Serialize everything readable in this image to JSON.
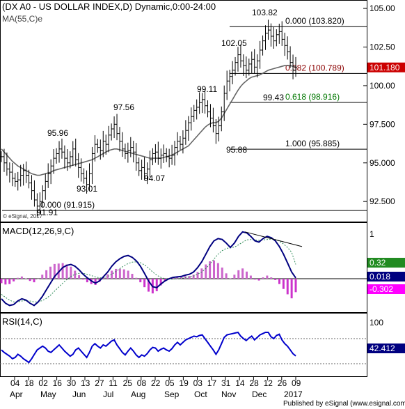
{
  "header": {
    "title": "(DX A0 - US DOLLAR INDEX,D) Dynamic,0:00-24:00",
    "ma_label": "MA(55,C)e",
    "watermark": "© eSignal, 2017",
    "footer": "Published by eSignal (www.esignal.com)"
  },
  "colors": {
    "price": "#000000",
    "ma": "#666666",
    "macd": "#000080",
    "signal": "#2e8b57",
    "hist_pos": "#cc66cc",
    "hist_neg": "#cc33cc",
    "rsi": "#0000cc",
    "fib_red": "#8b0000",
    "fib_green": "#007700",
    "last_price_bg": "#cc0000",
    "macd_bg": "#000080",
    "signal_bg": "#228b22",
    "hist_bg": "#ff00ff",
    "rsi_bg": "#000080"
  },
  "chart_data": [
    {
      "type": "candlestick",
      "panel": "price",
      "title": "(DX A0 - US DOLLAR INDEX,D) Dynamic,0:00-24:00",
      "ylim": [
        91.2,
        105.5
      ],
      "y_ticks": [
        "105.00",
        "102.50",
        "100.00",
        "97.500",
        "95.000",
        "92.500"
      ],
      "y_tick_values": [
        105.0,
        102.5,
        100.0,
        97.5,
        95.0,
        92.5
      ],
      "last_price": "101.180",
      "close_series": [
        95.4,
        95.0,
        94.6,
        94.4,
        94.0,
        93.8,
        93.9,
        94.2,
        94.5,
        94.2,
        93.7,
        93.2,
        92.6,
        92.2,
        92.5,
        93.2,
        93.8,
        94.3,
        94.8,
        95.3,
        95.6,
        95.9,
        95.7,
        95.3,
        95.0,
        95.4,
        95.9,
        95.2,
        94.7,
        94.3,
        94.0,
        93.6,
        94.3,
        95.6,
        96.2,
        96.0,
        95.8,
        96.4,
        96.2,
        96.8,
        97.2,
        97.5,
        96.9,
        96.4,
        95.9,
        95.6,
        95.8,
        96.0,
        95.7,
        95.0,
        94.5,
        94.7,
        94.3,
        94.6,
        95.2,
        95.6,
        95.7,
        95.3,
        95.5,
        95.6,
        95.4,
        95.3,
        95.5,
        96.0,
        96.4,
        96.2,
        96.6,
        97.1,
        97.6,
        98.0,
        98.4,
        98.6,
        98.9,
        99.1,
        98.7,
        98.3,
        97.9,
        97.4,
        96.9,
        97.4,
        98.3,
        99.5,
        100.3,
        100.6,
        101.0,
        101.5,
        102.0,
        101.6,
        101.3,
        101.0,
        101.4,
        101.7,
        101.2,
        101.6,
        102.3,
        102.9,
        103.4,
        103.6,
        103.2,
        102.9,
        103.3,
        103.5,
        103.0,
        102.6,
        102.2,
        101.5,
        101.0,
        101.18
      ],
      "ma55_series": [
        95.9,
        95.7,
        95.5,
        95.3,
        95.1,
        94.95,
        94.8,
        94.7,
        94.6,
        94.5,
        94.4,
        94.3,
        94.25,
        94.2,
        94.2,
        94.25,
        94.3,
        94.35,
        94.4,
        94.5,
        94.55,
        94.6,
        94.65,
        94.7,
        94.75,
        94.8,
        94.85,
        94.9,
        94.95,
        95.0,
        95.05,
        95.1,
        95.15,
        95.2,
        95.3,
        95.4,
        95.5,
        95.6,
        95.7,
        95.8,
        95.85,
        95.9,
        95.9,
        95.85,
        95.8,
        95.75,
        95.7,
        95.65,
        95.6,
        95.55,
        95.5,
        95.45,
        95.4,
        95.35,
        95.3,
        95.3,
        95.3,
        95.3,
        95.3,
        95.35,
        95.4,
        95.45,
        95.5,
        95.6,
        95.7,
        95.8,
        95.9,
        96.0,
        96.1,
        96.3,
        96.5,
        96.7,
        96.9,
        97.1,
        97.3,
        97.45,
        97.55,
        97.6,
        97.6,
        97.7,
        97.9,
        98.2,
        98.5,
        98.8,
        99.1,
        99.4,
        99.7,
        99.95,
        100.15,
        100.3,
        100.45,
        100.55,
        100.6,
        100.65,
        100.7,
        100.8,
        100.9,
        101.0,
        101.05,
        101.1,
        101.15,
        101.2,
        101.25,
        101.3,
        101.3,
        101.3,
        101.25,
        101.2
      ],
      "annotations": [
        {
          "text": "95.96",
          "price": 95.96
        },
        {
          "text": "93.01",
          "price": 93.01
        },
        {
          "text": "97.56",
          "price": 97.56
        },
        {
          "text": "94.07",
          "price": 94.07
        },
        {
          "text": "99.11",
          "price": 99.11
        },
        {
          "text": "102.05",
          "price": 102.05
        },
        {
          "text": "103.82",
          "price": 103.82
        },
        {
          "text": "99.43",
          "price": 99.43
        },
        {
          "text": "95.88",
          "price": 95.88
        },
        {
          "text": "91.91",
          "price": 91.91
        }
      ],
      "fib_levels": [
        {
          "label": "0.000 (103.820)",
          "price": 103.82,
          "color": "#000000"
        },
        {
          "label": "0.382 (100.789)",
          "price": 100.789,
          "color": "#8b0000"
        },
        {
          "label": "0.618 (98.916)",
          "price": 98.916,
          "color": "#007700"
        },
        {
          "label": "1.000 (95.885)",
          "price": 95.885,
          "color": "#000000"
        },
        {
          "label": "0.000 (91.915)",
          "price": 91.915,
          "color": "#000000"
        }
      ]
    },
    {
      "type": "line",
      "panel": "macd",
      "title": "MACD(12,26,9,C)",
      "ylim": [
        -0.75,
        1.25
      ],
      "y_ticks": [
        "1"
      ],
      "y_tick_values": [
        1.0
      ],
      "macd_value": "0.018",
      "signal_value": "0.32",
      "hist_value": "-0.302",
      "macd_series": [
        -0.45,
        -0.55,
        -0.6,
        -0.58,
        -0.5,
        -0.45,
        -0.48,
        -0.55,
        -0.6,
        -0.52,
        -0.4,
        -0.25,
        -0.1,
        0.05,
        0.15,
        0.25,
        0.3,
        0.32,
        0.28,
        0.2,
        0.1,
        0.02,
        -0.05,
        -0.1,
        -0.05,
        0.05,
        0.15,
        0.28,
        0.38,
        0.45,
        0.5,
        0.52,
        0.48,
        0.4,
        0.28,
        0.12,
        -0.05,
        -0.18,
        -0.2,
        -0.12,
        -0.05,
        0.0,
        0.03,
        0.04,
        0.05,
        0.08,
        0.1,
        0.15,
        0.25,
        0.38,
        0.55,
        0.72,
        0.85,
        0.9,
        0.88,
        0.8,
        0.7,
        0.8,
        0.95,
        1.05,
        1.03,
        0.95,
        0.85,
        0.82,
        0.9,
        0.95,
        0.92,
        0.85,
        0.72,
        0.55,
        0.35,
        0.15,
        0.018
      ],
      "signal_series": [
        -0.35,
        -0.42,
        -0.48,
        -0.52,
        -0.52,
        -0.5,
        -0.49,
        -0.5,
        -0.52,
        -0.52,
        -0.49,
        -0.44,
        -0.37,
        -0.28,
        -0.19,
        -0.1,
        -0.02,
        0.05,
        0.1,
        0.12,
        0.12,
        0.1,
        0.07,
        0.04,
        0.02,
        0.02,
        0.05,
        0.1,
        0.16,
        0.23,
        0.29,
        0.34,
        0.37,
        0.38,
        0.36,
        0.31,
        0.24,
        0.15,
        0.08,
        0.03,
        0.0,
        -0.01,
        -0.01,
        0.0,
        0.01,
        0.02,
        0.04,
        0.06,
        0.1,
        0.15,
        0.23,
        0.33,
        0.44,
        0.55,
        0.63,
        0.68,
        0.69,
        0.71,
        0.76,
        0.82,
        0.87,
        0.88,
        0.87,
        0.86,
        0.87,
        0.88,
        0.89,
        0.88,
        0.84,
        0.78,
        0.7,
        0.59,
        0.32
      ],
      "trendline": {
        "from": 1.05,
        "to": 0.72
      }
    },
    {
      "type": "line",
      "panel": "rsi",
      "title": "RSI(14,C)",
      "ylim": [
        10,
        110
      ],
      "y_ticks": [
        "100"
      ],
      "y_tick_values": [
        100
      ],
      "overbought": 70,
      "oversold": 30,
      "rsi_value": "42.412",
      "rsi_series": [
        52,
        48,
        45,
        42,
        38,
        40,
        45,
        42,
        38,
        35,
        32,
        38,
        45,
        52,
        55,
        58,
        55,
        50,
        48,
        52,
        56,
        60,
        55,
        50,
        46,
        42,
        45,
        52,
        55,
        50,
        45,
        40,
        48,
        58,
        62,
        58,
        55,
        60,
        58,
        62,
        66,
        68,
        60,
        54,
        48,
        44,
        50,
        55,
        50,
        44,
        40,
        44,
        42,
        46,
        52,
        56,
        55,
        50,
        53,
        55,
        52,
        50,
        54,
        60,
        64,
        60,
        64,
        68,
        70,
        72,
        74,
        73,
        75,
        76,
        70,
        64,
        58,
        52,
        45,
        52,
        62,
        72,
        76,
        77,
        78,
        79,
        80,
        74,
        70,
        67,
        71,
        74,
        68,
        72,
        76,
        78,
        80,
        80,
        73,
        70,
        75,
        77,
        68,
        62,
        58,
        52,
        46,
        42.412
      ]
    }
  ],
  "x_axis": {
    "day_labels": [
      "04",
      "18",
      "02",
      "16",
      "30",
      "13",
      "27",
      "11",
      "25",
      "08",
      "22",
      "05",
      "19",
      "03",
      "17",
      "31",
      "14",
      "28",
      "12",
      "26",
      "09"
    ],
    "month_labels": [
      "Apr",
      "May",
      "Jun",
      "Jul",
      "Aug",
      "Sep",
      "Oct",
      "Nov",
      "Dec",
      "2017"
    ]
  }
}
